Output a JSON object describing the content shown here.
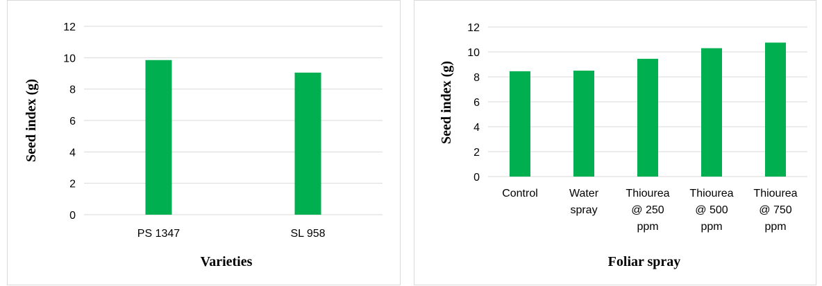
{
  "chart_data": [
    {
      "type": "bar",
      "categories": [
        "PS 1347",
        "SL 958"
      ],
      "values": [
        9.85,
        9.05
      ],
      "xlabel": "Varieties",
      "ylabel": "Seed index (g)",
      "ylim": [
        0,
        12
      ],
      "yticks": [
        0,
        2,
        4,
        6,
        8,
        10,
        12
      ],
      "grid": true,
      "bar_color": "#00b050"
    },
    {
      "type": "bar",
      "categories": [
        [
          "Control"
        ],
        [
          "Water",
          "spray"
        ],
        [
          "Thiourea",
          "@ 250",
          "ppm"
        ],
        [
          "Thiourea",
          "@ 500",
          "ppm"
        ],
        [
          "Thiourea",
          "@ 750",
          "ppm"
        ]
      ],
      "values": [
        8.45,
        8.5,
        9.45,
        10.3,
        10.75
      ],
      "xlabel": "Foliar spray",
      "ylabel": "Seed index (g)",
      "ylim": [
        0,
        12
      ],
      "yticks": [
        0,
        2,
        4,
        6,
        8,
        10,
        12
      ],
      "grid": true,
      "bar_color": "#00b050"
    }
  ]
}
